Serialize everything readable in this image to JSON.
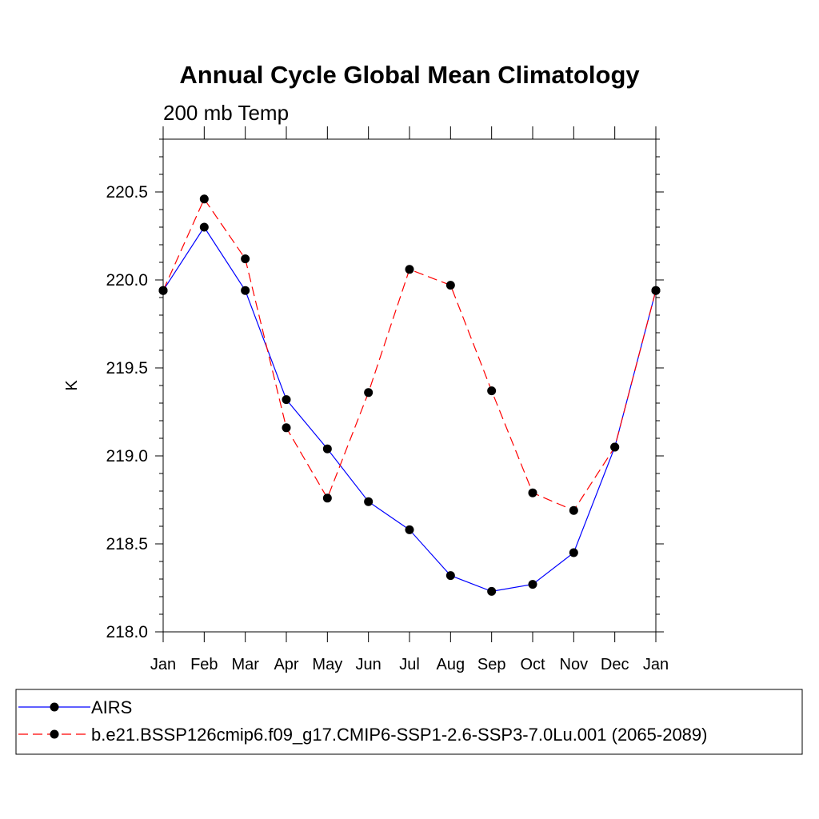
{
  "colors": {
    "series_0": "#0000ff",
    "series_1": "#ff0000",
    "marker": "#000000",
    "axis": "#000000",
    "legend_border": "#000000"
  },
  "chart_data": {
    "type": "line",
    "title": "Annual Cycle Global Mean Climatology",
    "subtitle": "200 mb Temp",
    "xlabel": "",
    "ylabel": "K",
    "categories": [
      "Jan",
      "Feb",
      "Mar",
      "Apr",
      "May",
      "Jun",
      "Jul",
      "Aug",
      "Sep",
      "Oct",
      "Nov",
      "Dec",
      "Jan"
    ],
    "ylim": [
      218.0,
      220.8
    ],
    "yticks": [
      218.0,
      218.5,
      219.0,
      219.5,
      220.0,
      220.5
    ],
    "ytick_labels": [
      "218.0",
      "218.5",
      "219.0",
      "219.5",
      "220.0",
      "220.5"
    ],
    "y_minor_step": 0.1,
    "grid": false,
    "legend_position": "bottom",
    "series": [
      {
        "name": "AIRS",
        "line_style": "solid",
        "values": [
          219.94,
          220.3,
          219.94,
          219.32,
          219.04,
          218.74,
          218.58,
          218.32,
          218.23,
          218.27,
          218.45,
          219.05,
          219.94
        ]
      },
      {
        "name": "b.e21.BSSP126cmip6.f09_g17.CMIP6-SSP1-2.6-SSP3-7.0Lu.001 (2065-2089)",
        "line_style": "dashed",
        "values": [
          219.94,
          220.46,
          220.12,
          219.16,
          218.76,
          219.36,
          220.06,
          219.97,
          219.37,
          218.79,
          218.69,
          219.05,
          219.94
        ]
      }
    ]
  }
}
